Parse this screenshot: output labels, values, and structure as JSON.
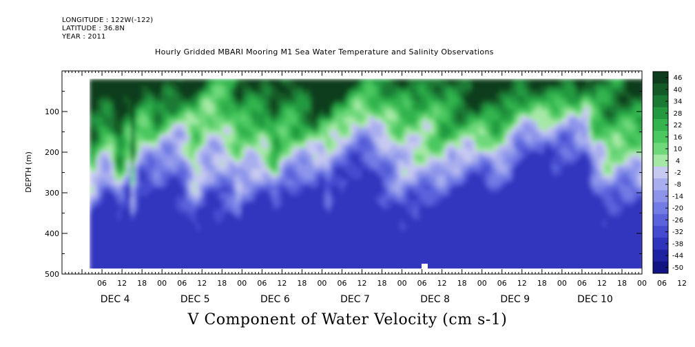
{
  "header": {
    "longitude": "LONGITUDE : 122W(-122)",
    "latitude": "LATITUDE : 36.8N",
    "year": "YEAR : 2011"
  },
  "chart_data": {
    "type": "heatmap",
    "title": "Hourly Gridded MBARI Mooring M1 Sea Water Temperature and Salinity Observations",
    "xlabel": "V Component of Water Velocity (cm s-1)",
    "ylabel": "DEPTH (m)",
    "ylim": [
      500,
      0
    ],
    "y_inverted": true,
    "y_ticks": [
      100,
      200,
      300,
      400,
      500
    ],
    "x_range_days": [
      "DEC 3 18:00",
      "DEC 10 24:00"
    ],
    "x_hour_ticks": [
      "06",
      "12",
      "18",
      "00",
      "06",
      "12",
      "18",
      "00",
      "06",
      "12",
      "18",
      "00",
      "06",
      "12",
      "18",
      "00",
      "06",
      "12",
      "18",
      "00",
      "06",
      "12",
      "18",
      "00",
      "06",
      "12",
      "18",
      "00",
      "06",
      "12",
      "18",
      "00"
    ],
    "x_day_labels": [
      "DEC  4",
      "DEC  5",
      "DEC  6",
      "DEC  7",
      "DEC  8",
      "DEC  9",
      "DEC 10"
    ],
    "colorbar": {
      "min": -50,
      "max": 50,
      "labels": [
        "46",
        "40",
        "34",
        "28",
        "22",
        "16",
        "10",
        "4",
        "-2",
        "-8",
        "-14",
        "-20",
        "-26",
        "-32",
        "-38",
        "-44",
        "-50"
      ],
      "colors": [
        "#0d3d1c",
        "#135a27",
        "#1a7a34",
        "#249a40",
        "#33b44e",
        "#4cc860",
        "#6ed87a",
        "#a5e8a6",
        "#c6c9f0",
        "#a8aeee",
        "#8c95ea",
        "#727ce4",
        "#5a63dc",
        "#444bcf",
        "#3034bd",
        "#1f21a3",
        "#121484"
      ]
    },
    "data_extent_depth": [
      20,
      490
    ],
    "notes": "Field values: near surface (0-120 m) strongly positive (dark green, up to ~46); below ~150 m mostly negative (light-to-medium blue, to about -30); green vertical streaks through Dec 4-6."
  }
}
